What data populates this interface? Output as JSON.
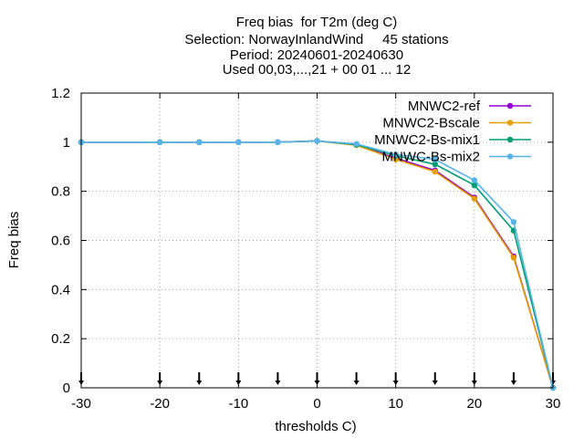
{
  "chart_data": {
    "type": "line",
    "title_lines": [
      "Freq bias  for T2m (deg C)",
      "Selection: NorwayInlandWind     45 stations",
      "Period: 20240601-20240630",
      "Used 00,03,...,21 + 00 01 ... 12"
    ],
    "xlabel": "thresholds C)",
    "ylabel": "Freq bias",
    "xlim": [
      -30,
      30
    ],
    "ylim": [
      0,
      1.2
    ],
    "xticks": [
      -30,
      -20,
      -10,
      0,
      10,
      20,
      30
    ],
    "yticks": [
      0,
      0.2,
      0.4,
      0.6,
      0.8,
      1,
      1.2
    ],
    "xtick_labels": [
      "-30",
      "-20",
      "-10",
      "0",
      "10",
      "20",
      "30"
    ],
    "ytick_labels": [
      "0",
      "0.2",
      "0.4",
      "0.6",
      "0.8",
      "1",
      "1.2"
    ],
    "grid": true,
    "legend_position": "top-right",
    "x": [
      -30,
      -20,
      -15,
      -10,
      -5,
      0,
      5,
      10,
      15,
      20,
      25,
      30
    ],
    "threshold_markers": [
      -30,
      -20,
      -15,
      -10,
      -5,
      0,
      5,
      10,
      15,
      20,
      25,
      30
    ],
    "series": [
      {
        "name": "MNWC2-ref",
        "color": "#9400d3",
        "values": [
          1.0,
          1.0,
          1.0,
          1.0,
          1.0,
          1.005,
          0.99,
          0.935,
          0.885,
          0.775,
          0.535,
          0.0
        ]
      },
      {
        "name": "MNWC2-Bscale",
        "color": "#e69f00",
        "values": [
          1.0,
          1.0,
          1.0,
          1.0,
          1.0,
          1.005,
          0.988,
          0.93,
          0.88,
          0.77,
          0.53,
          0.0
        ]
      },
      {
        "name": "MNWC2-Bs-mix1",
        "color": "#009e73",
        "values": [
          1.0,
          1.0,
          1.0,
          1.0,
          1.0,
          1.005,
          0.99,
          0.945,
          0.91,
          0.825,
          0.64,
          0.0
        ]
      },
      {
        "name": "MNWC-Bs-mix2",
        "color": "#56b4e9",
        "values": [
          1.0,
          1.0,
          1.0,
          1.0,
          1.0,
          1.005,
          0.993,
          0.95,
          0.93,
          0.845,
          0.675,
          0.0
        ]
      }
    ]
  }
}
